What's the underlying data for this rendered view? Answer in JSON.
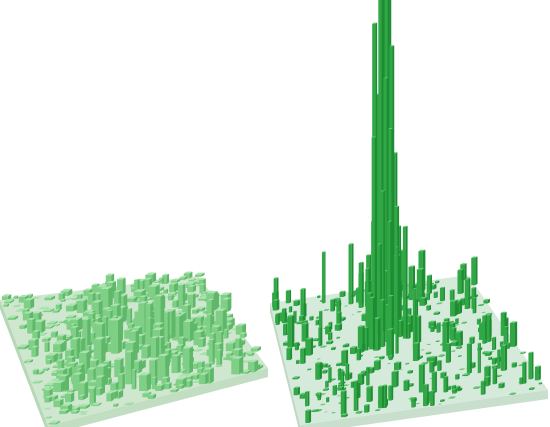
{
  "figure": {
    "panels": [
      {
        "id": "left",
        "description_free": true,
        "base_color": "#cfe6cf",
        "side_color": "#b7d8b7",
        "bar_color": "#7fcf86",
        "bar_top_color": "#a9e3ad",
        "bar_side_color": "#5fb86a",
        "peak_level": 0.15
      },
      {
        "id": "right",
        "description_free": true,
        "base_color": "#d6eadb",
        "side_color": "#bdd9c3",
        "bar_color": "#2fa845",
        "bar_top_color": "#63c774",
        "bar_side_color": "#1f8c34",
        "peak_level": 1.0
      }
    ]
  }
}
